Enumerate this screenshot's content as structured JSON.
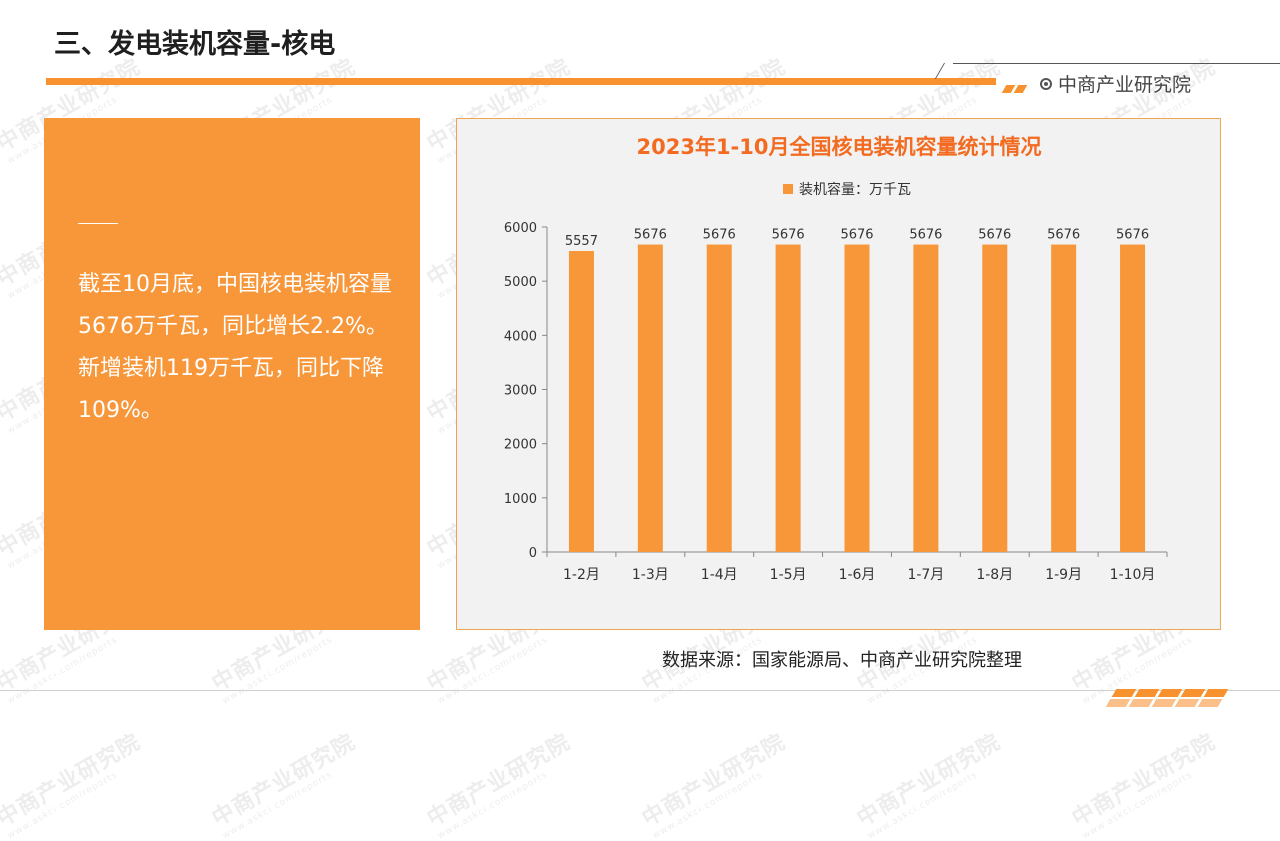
{
  "page": {
    "title": "三、发电装机容量-核电",
    "brand": "中商产业研究院",
    "brand_icon": "target-circle-icon",
    "accent_color": "#f7922e"
  },
  "info": {
    "text": "截至10月底，中国核电装机容量5676万千瓦，同比增长2.2%。新增装机119万千瓦，同比下降109%。"
  },
  "source": "数据来源：国家能源局、中商产业研究院整理",
  "watermark": {
    "main": "中商产业研究院",
    "sub": "www.askci.com/reports"
  },
  "chart_data": {
    "type": "bar",
    "title": "2023年1-10月全国核电装机容量统计情况",
    "legend": "装机容量：万千瓦",
    "legend_position": "top",
    "categories": [
      "1-2月",
      "1-3月",
      "1-4月",
      "1-5月",
      "1-6月",
      "1-7月",
      "1-8月",
      "1-9月",
      "1-10月"
    ],
    "series": [
      {
        "name": "装机容量：万千瓦",
        "values": [
          5557,
          5676,
          5676,
          5676,
          5676,
          5676,
          5676,
          5676,
          5676
        ]
      }
    ],
    "data_labels": [
      "5557",
      "5676",
      "5676",
      "5676",
      "5676",
      "5676",
      "5676",
      "5676",
      "5676"
    ],
    "ylim": [
      0,
      6000
    ],
    "yticks": [
      0,
      1000,
      2000,
      3000,
      4000,
      5000,
      6000
    ],
    "grid": false,
    "bar_color": "#f7973a"
  }
}
